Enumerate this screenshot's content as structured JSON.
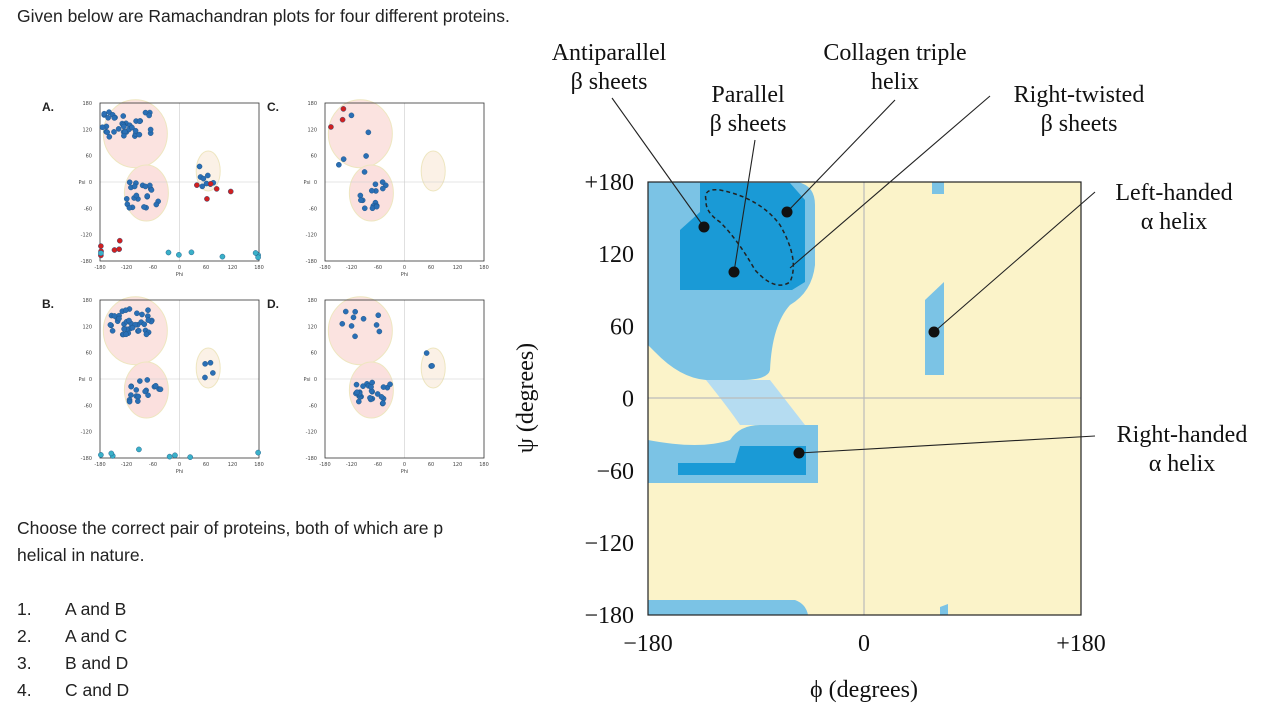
{
  "question": "Given below are Ramachandran plots for four different proteins.",
  "small_plots": {
    "labels": [
      "A.",
      "B.",
      "C.",
      "D."
    ],
    "x_ticks": [
      "-180",
      "-120",
      "-60",
      "0",
      "60",
      "120",
      "180"
    ],
    "y_ticks": [
      "180",
      "120",
      "60",
      "0",
      "-60",
      "-120",
      "-180"
    ],
    "x_label": "Phi",
    "y_label": "Psi"
  },
  "prompt": [
    "Choose the correct pair of proteins, both of which are p",
    "helical in nature."
  ],
  "options": [
    {
      "number": "1.",
      "text": "A and B"
    },
    {
      "number": "2.",
      "text": "A and C"
    },
    {
      "number": "3.",
      "text": "B and D"
    },
    {
      "number": "4.",
      "text": "C and D"
    }
  ],
  "diagram": {
    "x_label": "ϕ (degrees)",
    "y_label": "ψ (degrees)",
    "x_ticks": [
      "−180",
      "0",
      "+180"
    ],
    "y_ticks": [
      "+180",
      "120",
      "60",
      "0",
      "−60",
      "−120",
      "−180"
    ],
    "annotations": [
      {
        "lines": [
          "Antiparallel",
          "β sheets"
        ]
      },
      {
        "lines": [
          "Parallel",
          "β sheets"
        ]
      },
      {
        "lines": [
          "Collagen triple",
          "helix"
        ]
      },
      {
        "lines": [
          "Right-twisted",
          "β sheets"
        ]
      },
      {
        "lines": [
          "Left-handed",
          "α helix"
        ]
      },
      {
        "lines": [
          "Right-handed",
          "α helix"
        ]
      }
    ]
  }
}
